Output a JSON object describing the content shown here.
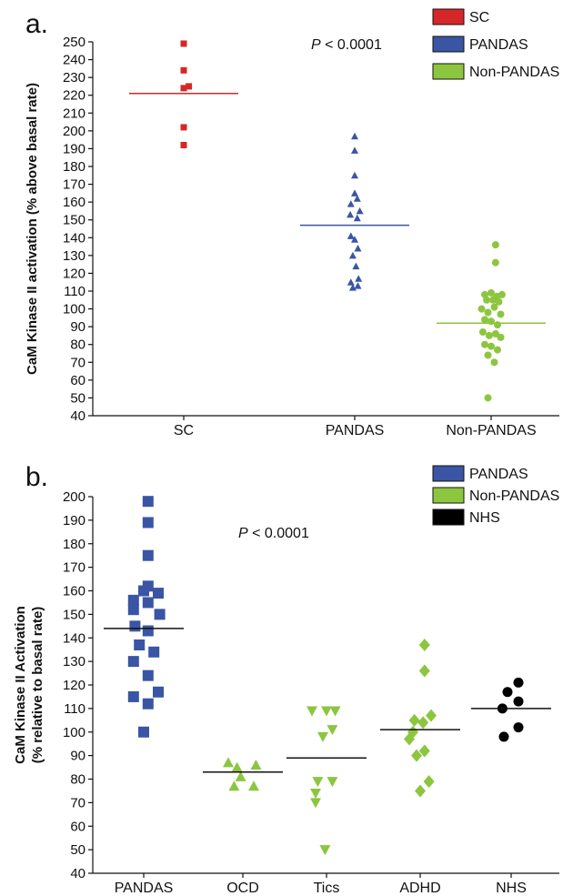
{
  "chart_data": [
    {
      "type": "scatter",
      "panel_label": "a.",
      "ylabel": "CaM Kinase II activation (% above basal rate)",
      "ylim": [
        40,
        250
      ],
      "ytick_step": 10,
      "categories": [
        "SC",
        "PANDAS",
        "Non-PANDAS"
      ],
      "annotation": {
        "italic": "P",
        "text": " < 0.0001"
      },
      "legend_placement": "top-right",
      "legend": [
        {
          "label": "SC",
          "color": "#d62728"
        },
        {
          "label": "PANDAS",
          "color": "#3a55a4"
        },
        {
          "label": "Non-PANDAS",
          "color": "#8cc63f"
        }
      ],
      "series": [
        {
          "name": "SC",
          "category": "SC",
          "marker": "square",
          "color": "#d62728",
          "mean": 221,
          "points": [
            {
              "x": 0,
              "y": 249
            },
            {
              "x": 0,
              "y": 234
            },
            {
              "x": 0,
              "y": 224
            },
            {
              "x": 0.08,
              "y": 225
            },
            {
              "x": 0,
              "y": 202
            },
            {
              "x": 0,
              "y": 192
            }
          ]
        },
        {
          "name": "PANDAS",
          "category": "PANDAS",
          "marker": "triangle-up",
          "color": "#3a55a4",
          "mean": 147,
          "points": [
            {
              "x": 0,
              "y": 197
            },
            {
              "x": 0,
              "y": 189
            },
            {
              "x": 0,
              "y": 175
            },
            {
              "x": 0,
              "y": 165
            },
            {
              "x": -0.06,
              "y": 159
            },
            {
              "x": 0.04,
              "y": 162
            },
            {
              "x": -0.07,
              "y": 153
            },
            {
              "x": 0.08,
              "y": 155
            },
            {
              "x": 0.04,
              "y": 151
            },
            {
              "x": -0.06,
              "y": 141
            },
            {
              "x": 0.05,
              "y": 134
            },
            {
              "x": 0.0,
              "y": 139
            },
            {
              "x": -0.03,
              "y": 130
            },
            {
              "x": 0.02,
              "y": 124
            },
            {
              "x": -0.06,
              "y": 115
            },
            {
              "x": 0.06,
              "y": 117
            },
            {
              "x": -0.03,
              "y": 112
            },
            {
              "x": 0.05,
              "y": 113
            }
          ]
        },
        {
          "name": "Non-PANDAS",
          "category": "Non-PANDAS",
          "marker": "circle",
          "color": "#8cc63f",
          "mean": 92,
          "points": [
            {
              "x": 0.07,
              "y": 136
            },
            {
              "x": 0.07,
              "y": 126
            },
            {
              "x": -0.1,
              "y": 108
            },
            {
              "x": 0.0,
              "y": 109
            },
            {
              "x": 0.09,
              "y": 107
            },
            {
              "x": 0.17,
              "y": 108
            },
            {
              "x": -0.07,
              "y": 105
            },
            {
              "x": 0.03,
              "y": 105
            },
            {
              "x": 0.12,
              "y": 104
            },
            {
              "x": -0.15,
              "y": 100
            },
            {
              "x": -0.05,
              "y": 98
            },
            {
              "x": 0.05,
              "y": 101
            },
            {
              "x": 0.15,
              "y": 97
            },
            {
              "x": -0.1,
              "y": 94
            },
            {
              "x": 0.0,
              "y": 93
            },
            {
              "x": 0.1,
              "y": 91
            },
            {
              "x": -0.13,
              "y": 87
            },
            {
              "x": -0.03,
              "y": 85
            },
            {
              "x": 0.07,
              "y": 86
            },
            {
              "x": 0.15,
              "y": 84
            },
            {
              "x": -0.1,
              "y": 80
            },
            {
              "x": 0.0,
              "y": 79
            },
            {
              "x": 0.1,
              "y": 77
            },
            {
              "x": -0.05,
              "y": 74
            },
            {
              "x": 0.05,
              "y": 70
            },
            {
              "x": -0.05,
              "y": 50
            }
          ]
        }
      ]
    },
    {
      "type": "scatter",
      "panel_label": "b.",
      "ylabel": "CaM Kinase II Activation (% relative to  basal rate)",
      "ylim": [
        40,
        200
      ],
      "ytick_step": 10,
      "categories": [
        "PANDAS",
        "OCD",
        "Tics",
        "ADHD",
        "NHS"
      ],
      "annotation": {
        "italic": "P",
        "text": " < 0.0001"
      },
      "legend_placement": "top-right",
      "legend": [
        {
          "label": "PANDAS",
          "color": "#3a55a4"
        },
        {
          "label": "Non-PANDAS",
          "color": "#8cc63f"
        },
        {
          "label": "NHS",
          "color": "#000000"
        }
      ],
      "series": [
        {
          "name": "PANDAS",
          "category": "PANDAS",
          "marker": "square",
          "color": "#3a55a4",
          "mean": 144,
          "points": [
            {
              "x": 0.06,
              "y": 198
            },
            {
              "x": 0.06,
              "y": 189
            },
            {
              "x": 0.06,
              "y": 175
            },
            {
              "x": 0.06,
              "y": 162
            },
            {
              "x": 0.0,
              "y": 160
            },
            {
              "x": 0.2,
              "y": 159
            },
            {
              "x": -0.14,
              "y": 156
            },
            {
              "x": 0.06,
              "y": 155
            },
            {
              "x": -0.14,
              "y": 152
            },
            {
              "x": 0.22,
              "y": 150
            },
            {
              "x": -0.12,
              "y": 145
            },
            {
              "x": 0.06,
              "y": 143
            },
            {
              "x": -0.06,
              "y": 137
            },
            {
              "x": 0.14,
              "y": 134
            },
            {
              "x": -0.14,
              "y": 130
            },
            {
              "x": 0.06,
              "y": 124
            },
            {
              "x": 0.2,
              "y": 117
            },
            {
              "x": -0.14,
              "y": 115
            },
            {
              "x": 0.06,
              "y": 112
            },
            {
              "x": 0.0,
              "y": 100
            }
          ]
        },
        {
          "name": "OCD",
          "category": "OCD",
          "marker": "triangle-up",
          "color": "#8cc63f",
          "mean": 83,
          "points": [
            {
              "x": -0.2,
              "y": 87
            },
            {
              "x": -0.08,
              "y": 85
            },
            {
              "x": 0.18,
              "y": 86
            },
            {
              "x": -0.03,
              "y": 81
            },
            {
              "x": -0.12,
              "y": 77
            },
            {
              "x": 0.15,
              "y": 77
            }
          ]
        },
        {
          "name": "Tics",
          "category": "Tics",
          "marker": "triangle-down",
          "color": "#8cc63f",
          "mean": 89,
          "points": [
            {
              "x": -0.2,
              "y": 109
            },
            {
              "x": 0.0,
              "y": 109
            },
            {
              "x": 0.12,
              "y": 109
            },
            {
              "x": -0.05,
              "y": 98
            },
            {
              "x": 0.08,
              "y": 101
            },
            {
              "x": -0.12,
              "y": 79
            },
            {
              "x": 0.08,
              "y": 79
            },
            {
              "x": -0.15,
              "y": 70
            },
            {
              "x": -0.15,
              "y": 74
            },
            {
              "x": -0.02,
              "y": 50
            }
          ]
        },
        {
          "name": "ADHD",
          "category": "ADHD",
          "marker": "diamond",
          "color": "#8cc63f",
          "mean": 101,
          "points": [
            {
              "x": 0.06,
              "y": 137
            },
            {
              "x": 0.06,
              "y": 126
            },
            {
              "x": 0.15,
              "y": 107
            },
            {
              "x": -0.08,
              "y": 105
            },
            {
              "x": 0.04,
              "y": 104
            },
            {
              "x": -0.1,
              "y": 100
            },
            {
              "x": -0.15,
              "y": 97
            },
            {
              "x": 0.06,
              "y": 92
            },
            {
              "x": -0.05,
              "y": 90
            },
            {
              "x": 0.12,
              "y": 79
            },
            {
              "x": 0.0,
              "y": 75
            }
          ]
        },
        {
          "name": "NHS",
          "category": "NHS",
          "marker": "circle",
          "color": "#000000",
          "mean": 110,
          "points": [
            {
              "x": -0.05,
              "y": 117
            },
            {
              "x": 0.1,
              "y": 121
            },
            {
              "x": -0.12,
              "y": 110
            },
            {
              "x": 0.1,
              "y": 113
            },
            {
              "x": -0.1,
              "y": 98
            },
            {
              "x": 0.1,
              "y": 102
            }
          ]
        }
      ]
    }
  ]
}
